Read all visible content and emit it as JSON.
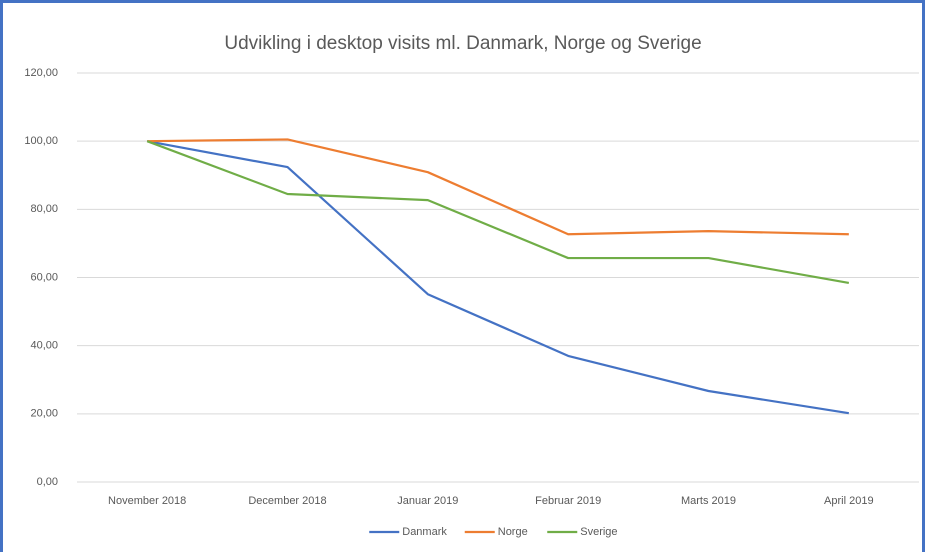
{
  "chart_data": {
    "type": "line",
    "title": "Udvikling i desktop visits ml. Danmark, Norge og Sverige",
    "categories": [
      "November 2018",
      "December 2018",
      "Januar 2019",
      "Februar 2019",
      "Marts 2019",
      "April 2019"
    ],
    "series": [
      {
        "name": "Danmark",
        "color": "#4472c4",
        "values": [
          100,
          92.4,
          55.1,
          37,
          26.7,
          20.2
        ]
      },
      {
        "name": "Norge",
        "color": "#ed7d31",
        "values": [
          100,
          100.5,
          90.9,
          72.7,
          73.6,
          72.7
        ]
      },
      {
        "name": "Sverige",
        "color": "#70ad47",
        "values": [
          100,
          84.5,
          82.7,
          65.7,
          65.7,
          58.4
        ]
      }
    ],
    "ylim": [
      0,
      120
    ],
    "yticks": [
      {
        "value": 0,
        "label": "0,00"
      },
      {
        "value": 20,
        "label": "20,00"
      },
      {
        "value": 40,
        "label": "40,00"
      },
      {
        "value": 60,
        "label": "60,00"
      },
      {
        "value": 80,
        "label": "80,00"
      },
      {
        "value": 100,
        "label": "100,00"
      },
      {
        "value": 120,
        "label": "120,00"
      }
    ],
    "grid": true,
    "legend": "bottom"
  }
}
